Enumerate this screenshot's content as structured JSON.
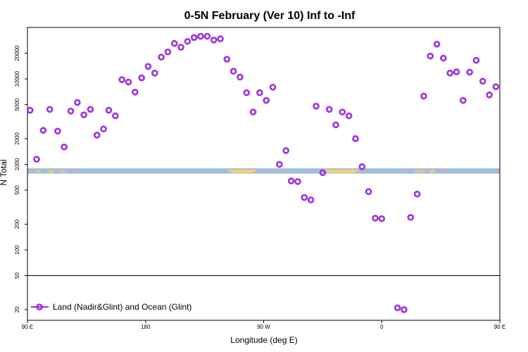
{
  "chart_data": {
    "type": "scatter",
    "title": "0-5N February (Ver 10)   Inf to -Inf",
    "xlabel": "Longitude (deg E)",
    "ylabel": "N Total",
    "y_scale": "log",
    "xlim": [
      90,
      450
    ],
    "ylim": [
      15,
      40000
    ],
    "x_ticks": [
      {
        "value": 90,
        "label": "90 E"
      },
      {
        "value": 180,
        "label": "180"
      },
      {
        "value": 270,
        "label": "90 W"
      },
      {
        "value": 360,
        "label": "0"
      },
      {
        "value": 450,
        "label": "90 E"
      },
      {
        "value": 540,
        "label": "180"
      }
    ],
    "y_ticks": [
      {
        "value": 20,
        "label": "20"
      },
      {
        "value": 50,
        "label": "50"
      },
      {
        "value": 100,
        "label": "100"
      },
      {
        "value": 200,
        "label": "200"
      },
      {
        "value": 500,
        "label": "500"
      },
      {
        "value": 1000,
        "label": "1000"
      },
      {
        "value": 2000,
        "label": "2000"
      },
      {
        "value": 5000,
        "label": "5000"
      },
      {
        "value": 10000,
        "label": "10000"
      },
      {
        "value": 20000,
        "label": "20000"
      }
    ],
    "reference_line_y": 50,
    "series": [
      {
        "name": "Land (Nadir&Glint) and Ocean (Glint)",
        "color": "#9b30e0",
        "marker": "open-circle",
        "points": [
          {
            "x": 92,
            "y": 4300
          },
          {
            "x": 97,
            "y": 1150
          },
          {
            "x": 102,
            "y": 2500
          },
          {
            "x": 107,
            "y": 4400
          },
          {
            "x": 113,
            "y": 2450
          },
          {
            "x": 118,
            "y": 1600
          },
          {
            "x": 123,
            "y": 4200
          },
          {
            "x": 128,
            "y": 5300
          },
          {
            "x": 133,
            "y": 3800
          },
          {
            "x": 138,
            "y": 4400
          },
          {
            "x": 143,
            "y": 2200
          },
          {
            "x": 148,
            "y": 2600
          },
          {
            "x": 152,
            "y": 4300
          },
          {
            "x": 157,
            "y": 3700
          },
          {
            "x": 162,
            "y": 9800
          },
          {
            "x": 167,
            "y": 9200
          },
          {
            "x": 172,
            "y": 7000
          },
          {
            "x": 177,
            "y": 10300
          },
          {
            "x": 182,
            "y": 14000
          },
          {
            "x": 187,
            "y": 11700
          },
          {
            "x": 192,
            "y": 18000
          },
          {
            "x": 197,
            "y": 20700
          },
          {
            "x": 202,
            "y": 26000
          },
          {
            "x": 207,
            "y": 23500
          },
          {
            "x": 212,
            "y": 27500
          },
          {
            "x": 217,
            "y": 30500
          },
          {
            "x": 222,
            "y": 31500
          },
          {
            "x": 227,
            "y": 31500
          },
          {
            "x": 232,
            "y": 28500
          },
          {
            "x": 237,
            "y": 29500
          },
          {
            "x": 242,
            "y": 17000
          },
          {
            "x": 247,
            "y": 12300
          },
          {
            "x": 252,
            "y": 10500
          },
          {
            "x": 257,
            "y": 6900
          },
          {
            "x": 262,
            "y": 4100
          },
          {
            "x": 267,
            "y": 6900
          },
          {
            "x": 272,
            "y": 5600
          },
          {
            "x": 277,
            "y": 8000
          },
          {
            "x": 282,
            "y": 1000
          },
          {
            "x": 287,
            "y": 1450
          },
          {
            "x": 291,
            "y": 640
          },
          {
            "x": 296,
            "y": 630
          },
          {
            "x": 301,
            "y": 410
          },
          {
            "x": 306,
            "y": 385
          },
          {
            "x": 310,
            "y": 4800
          },
          {
            "x": 315,
            "y": 800
          },
          {
            "x": 320,
            "y": 4400
          },
          {
            "x": 325,
            "y": 2900
          },
          {
            "x": 330,
            "y": 4100
          },
          {
            "x": 335,
            "y": 3700
          },
          {
            "x": 340,
            "y": 2000
          },
          {
            "x": 345,
            "y": 940
          },
          {
            "x": 350,
            "y": 480
          },
          {
            "x": 355,
            "y": 235
          },
          {
            "x": 360,
            "y": 232
          },
          {
            "x": 372,
            "y": 21
          },
          {
            "x": 377,
            "y": 20
          },
          {
            "x": 382,
            "y": 240
          },
          {
            "x": 387,
            "y": 450
          },
          {
            "x": 392,
            "y": 6300
          },
          {
            "x": 397,
            "y": 18500
          },
          {
            "x": 402,
            "y": 25500
          },
          {
            "x": 407,
            "y": 17500
          },
          {
            "x": 412,
            "y": 11700
          },
          {
            "x": 417,
            "y": 12100
          },
          {
            "x": 422,
            "y": 5600
          },
          {
            "x": 427,
            "y": 12000
          },
          {
            "x": 432,
            "y": 16500
          },
          {
            "x": 437,
            "y": 9400
          },
          {
            "x": 442,
            "y": 6500
          },
          {
            "x": 447,
            "y": 8100
          }
        ]
      }
    ],
    "series_continued_note": "",
    "legend": {
      "position": "bottom-left"
    },
    "background_band": {
      "y_low": 780,
      "y_high": 900,
      "ocean_color": "#a6bcd7",
      "land_color": "#f8d272"
    }
  }
}
